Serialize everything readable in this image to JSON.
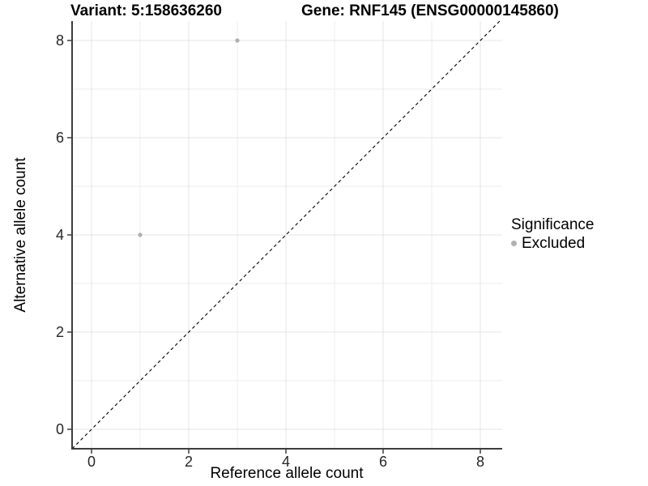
{
  "titles": {
    "variant": "Variant: 5:158636260",
    "gene": "Gene: RNF145 (ENSG00000145860)"
  },
  "chart_data": {
    "type": "scatter",
    "xlabel": "Reference allele count",
    "ylabel": "Alternative allele count",
    "xlim": [
      -0.4,
      8.45
    ],
    "ylim": [
      -0.4,
      8.4
    ],
    "x_major_ticks": [
      0,
      2,
      4,
      6,
      8
    ],
    "y_major_ticks": [
      0,
      2,
      4,
      6,
      8
    ],
    "x_minor_ticks": [
      1,
      3,
      5,
      7
    ],
    "y_minor_ticks": [
      1,
      3,
      5,
      7
    ],
    "grid": true,
    "series": [
      {
        "name": "Excluded",
        "color": "#b0b0b0",
        "points": [
          {
            "x": 1,
            "y": 4
          },
          {
            "x": 3,
            "y": 8
          }
        ]
      }
    ],
    "reference_line": {
      "type": "identity",
      "style": "dashed",
      "color": "#000000",
      "from": -0.4,
      "to": 8.4
    },
    "legend": {
      "title": "Significance",
      "position": "right",
      "items": [
        {
          "label": "Excluded",
          "color": "#b0b0b0"
        }
      ]
    }
  },
  "colors": {
    "background": "#ffffff",
    "grid_major": "#e4e4e4",
    "grid_minor": "#eeeeee",
    "axis_line": "#3d3d3d",
    "tick_label": "#262626"
  }
}
